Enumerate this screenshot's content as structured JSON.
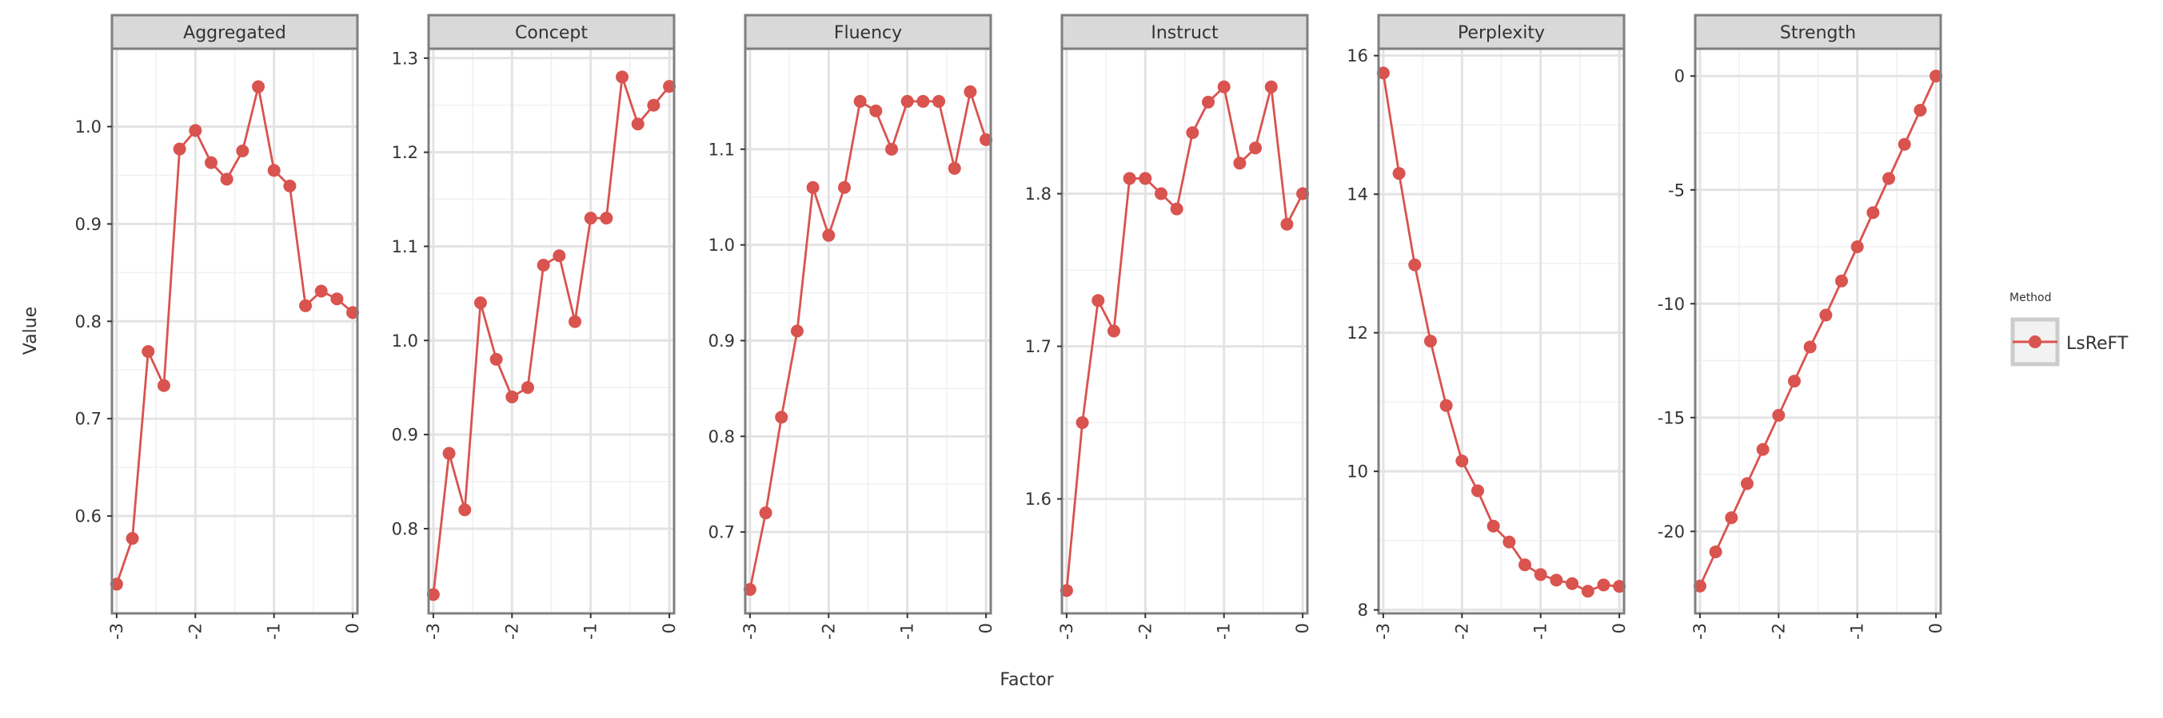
{
  "chart_data": {
    "type": "line",
    "facet_variable": "panel",
    "xlabel": "Factor",
    "ylabel": "Value",
    "legend": {
      "title": "Method",
      "position": "right",
      "entries": [
        "LsReFT"
      ]
    },
    "grid": true,
    "x": [
      -3.0,
      -2.8,
      -2.6,
      -2.4,
      -2.2,
      -2.0,
      -1.8,
      -1.6,
      -1.4,
      -1.2,
      -1.0,
      -0.8,
      -0.6,
      -0.4,
      -0.2,
      0.0
    ],
    "x_ticks": [
      -3,
      -2,
      -1,
      0
    ],
    "x_tick_labels": [
      "-3",
      "-2",
      "-1",
      "0"
    ],
    "xlim": [
      -3.06,
      0.06
    ],
    "series_color": "#d9534f",
    "panels": [
      {
        "title": "Aggregated",
        "ylim": [
          0.5,
          1.08
        ],
        "y_ticks": [
          0.6,
          0.7,
          0.8,
          0.9,
          1.0
        ],
        "y_tick_labels": [
          "0.6",
          "0.7",
          "0.8",
          "0.9",
          "1.0"
        ],
        "series": [
          {
            "name": "LsReFT",
            "values": [
              0.53,
              0.577,
              0.769,
              0.734,
              0.977,
              0.996,
              0.963,
              0.946,
              0.975,
              1.041,
              0.955,
              0.939,
              0.816,
              0.831,
              0.823,
              0.809
            ]
          }
        ]
      },
      {
        "title": "Concept",
        "ylim": [
          0.71,
          1.31
        ],
        "y_ticks": [
          0.8,
          0.9,
          1.0,
          1.1,
          1.2,
          1.3
        ],
        "y_tick_labels": [
          "0.8",
          "0.9",
          "1.0",
          "1.1",
          "1.2",
          "1.3"
        ],
        "series": [
          {
            "name": "LsReFT",
            "values": [
              0.73,
              0.88,
              0.82,
              1.04,
              0.98,
              0.94,
              0.95,
              1.08,
              1.09,
              1.02,
              1.13,
              1.13,
              1.28,
              1.23,
              1.25,
              1.27
            ]
          }
        ]
      },
      {
        "title": "Fluency",
        "ylim": [
          0.615,
          1.205
        ],
        "y_ticks": [
          0.7,
          0.8,
          0.9,
          1.0,
          1.1
        ],
        "y_tick_labels": [
          "0.7",
          "0.8",
          "0.9",
          "1.0",
          "1.1"
        ],
        "series": [
          {
            "name": "LsReFT",
            "values": [
              0.64,
              0.72,
              0.82,
              0.91,
              1.06,
              1.01,
              1.06,
              1.15,
              1.14,
              1.1,
              1.15,
              1.15,
              1.15,
              1.08,
              1.16,
              1.11
            ]
          }
        ]
      },
      {
        "title": "Instruct",
        "ylim": [
          1.525,
          1.895
        ],
        "y_ticks": [
          1.6,
          1.7,
          1.8
        ],
        "y_tick_labels": [
          "1.6",
          "1.7",
          "1.8"
        ],
        "series": [
          {
            "name": "LsReFT",
            "values": [
              1.54,
              1.65,
              1.73,
              1.71,
              1.81,
              1.81,
              1.8,
              1.79,
              1.84,
              1.86,
              1.87,
              1.82,
              1.83,
              1.87,
              1.78,
              1.8
            ]
          }
        ]
      },
      {
        "title": "Perplexity",
        "ylim": [
          7.95,
          16.1
        ],
        "y_ticks": [
          8,
          10,
          12,
          14,
          16
        ],
        "y_tick_labels": [
          "8",
          "10",
          "12",
          "14",
          "16"
        ],
        "series": [
          {
            "name": "LsReFT",
            "values": [
              15.75,
              14.3,
              12.98,
              11.88,
              10.95,
              10.15,
              9.72,
              9.21,
              8.98,
              8.65,
              8.51,
              8.43,
              8.38,
              8.27,
              8.36,
              8.34
            ]
          }
        ]
      },
      {
        "title": "Strength",
        "ylim": [
          -23.6,
          1.2
        ],
        "y_ticks": [
          0,
          -5,
          -10,
          -15,
          -20
        ],
        "y_tick_labels": [
          "0",
          "-5",
          "-10",
          "-15",
          "-20"
        ],
        "series": [
          {
            "name": "LsReFT",
            "values": [
              -22.4,
              -20.9,
              -19.4,
              -17.9,
              -16.4,
              -14.9,
              -13.4,
              -11.9,
              -10.5,
              -9.0,
              -7.5,
              -6.0,
              -4.5,
              -3.0,
              -1.5,
              0.0
            ]
          }
        ]
      }
    ]
  }
}
